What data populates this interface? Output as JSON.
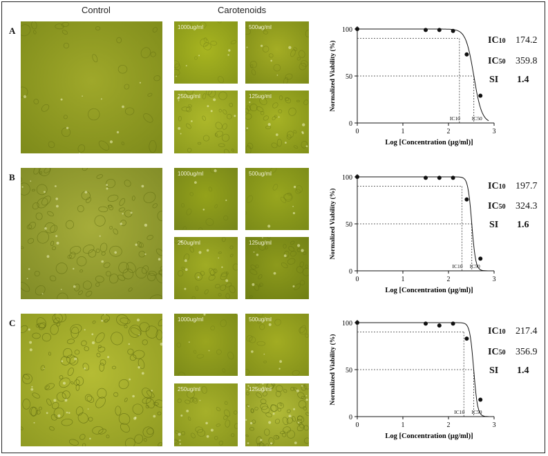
{
  "headers": {
    "control": "Control",
    "treatment": "Carotenoids"
  },
  "rows": [
    {
      "label": "A",
      "concentrations": [
        "1000ug/ml",
        "500ug/ml",
        "250ug/ml",
        "125ug/ml"
      ],
      "stats": [
        {
          "name": "IC10",
          "value": "174.2"
        },
        {
          "name": "IC50",
          "value": "359.8"
        },
        {
          "name": "SI",
          "value": "1.4"
        }
      ],
      "chart_data": {
        "type": "scatter",
        "xlabel": "Log [Concentration (µg/ml)]",
        "ylabel": "Normalized Viability (%)",
        "xlim": [
          0,
          3
        ],
        "ylim": [
          0,
          100
        ],
        "xticks": [
          0,
          1,
          2,
          3
        ],
        "yticks": [
          0,
          50,
          100
        ],
        "x": [
          0,
          1.5,
          1.8,
          2.1,
          2.4,
          2.7
        ],
        "y": [
          100,
          99,
          99,
          98,
          73,
          29
        ],
        "fit": {
          "top": 100,
          "bottom": 0,
          "log_ic50": 2.556,
          "hill": -4.95
        },
        "ic10_x": 2.24,
        "ic50_x": 2.556,
        "ic10_label": "IC10",
        "ic50_label": "IC50"
      }
    },
    {
      "label": "B",
      "concentrations": [
        "1000ug/ml",
        "500ug/ml",
        "250ug/ml",
        "125ug/ml"
      ],
      "stats": [
        {
          "name": "IC10",
          "value": "197.7"
        },
        {
          "name": "IC50",
          "value": "324.3"
        },
        {
          "name": "SI",
          "value": "1.6"
        }
      ],
      "chart_data": {
        "type": "scatter",
        "xlabel": "Log [Concentration (µg/ml)]",
        "ylabel": "Normalized Viability (%)",
        "xlim": [
          0,
          3
        ],
        "ylim": [
          0,
          100
        ],
        "xticks": [
          0,
          1,
          2,
          3
        ],
        "yticks": [
          0,
          50,
          100
        ],
        "x": [
          0,
          1.5,
          1.8,
          2.1,
          2.4,
          2.7
        ],
        "y": [
          100,
          99,
          99,
          99,
          76,
          13
        ],
        "fit": {
          "top": 100,
          "bottom": 0,
          "log_ic50": 2.511,
          "hill": -10.2
        },
        "ic10_x": 2.296,
        "ic50_x": 2.511,
        "ic10_label": "IC10",
        "ic50_label": "IC50"
      }
    },
    {
      "label": "C",
      "concentrations": [
        "1000ug/ml",
        "500ug/ml",
        "250ug/ml",
        "125ug/ml"
      ],
      "stats": [
        {
          "name": "IC10",
          "value": "217.4"
        },
        {
          "name": "IC50",
          "value": "356.9"
        },
        {
          "name": "SI",
          "value": "1.4"
        }
      ],
      "chart_data": {
        "type": "scatter",
        "xlabel": "Log [Concentration (µg/ml)]",
        "ylabel": "Normalized Viability (%)",
        "xlim": [
          0,
          3
        ],
        "ylim": [
          0,
          100
        ],
        "xticks": [
          0,
          1,
          2,
          3
        ],
        "yticks": [
          0,
          50,
          100
        ],
        "x": [
          0,
          1.5,
          1.8,
          2.1,
          2.4,
          2.7
        ],
        "y": [
          100,
          99,
          97,
          99,
          83,
          18
        ],
        "fit": {
          "top": 100,
          "bottom": 0,
          "log_ic50": 2.553,
          "hill": -10.2
        },
        "ic10_x": 2.337,
        "ic50_x": 2.553,
        "ic10_label": "IC10",
        "ic50_label": "IC50"
      }
    }
  ]
}
